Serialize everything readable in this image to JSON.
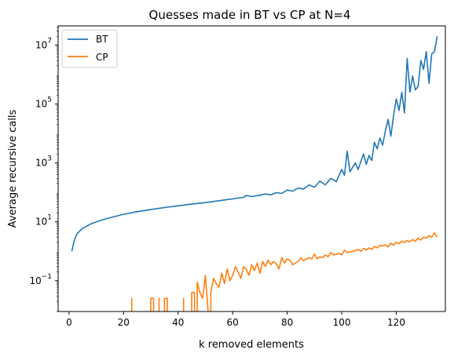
{
  "chart_data": {
    "type": "line",
    "title": "Quesses made in BT vs CP at N=4",
    "xlabel": "k removed elements",
    "ylabel": "Average recursive calls",
    "xlim": [
      -4,
      138
    ],
    "ylim": [
      0.009,
      45000000
    ],
    "yscale": "log",
    "grid": false,
    "legend_position": "top-left",
    "x_ticks": [
      {
        "value": 0,
        "label": "0"
      },
      {
        "value": 20,
        "label": "20"
      },
      {
        "value": 40,
        "label": "40"
      },
      {
        "value": 60,
        "label": "60"
      },
      {
        "value": 80,
        "label": "80"
      },
      {
        "value": 100,
        "label": "100"
      },
      {
        "value": 120,
        "label": "120"
      }
    ],
    "y_ticks": [
      {
        "value": 0.1,
        "base": "10",
        "exp": "−1"
      },
      {
        "value": 10,
        "base": "10",
        "exp": "1"
      },
      {
        "value": 1000,
        "base": "10",
        "exp": "3"
      },
      {
        "value": 100000,
        "base": "10",
        "exp": "5"
      },
      {
        "value": 10000000,
        "base": "10",
        "exp": "7"
      }
    ],
    "series": [
      {
        "name": "BT",
        "color": "#1f77b4",
        "points": [
          [
            1,
            1
          ],
          [
            2,
            2.5
          ],
          [
            3,
            4
          ],
          [
            5,
            6
          ],
          [
            8,
            8.5
          ],
          [
            12,
            11.5
          ],
          [
            16,
            14.5
          ],
          [
            20,
            18
          ],
          [
            25,
            22
          ],
          [
            30,
            26
          ],
          [
            35,
            30.5
          ],
          [
            40,
            35
          ],
          [
            45,
            40
          ],
          [
            50,
            45
          ],
          [
            55,
            52
          ],
          [
            60,
            60
          ],
          [
            64,
            68
          ],
          [
            65,
            78
          ],
          [
            67,
            72
          ],
          [
            70,
            80
          ],
          [
            72,
            88
          ],
          [
            74,
            82
          ],
          [
            76,
            98
          ],
          [
            78,
            92
          ],
          [
            80,
            120
          ],
          [
            82,
            110
          ],
          [
            84,
            140
          ],
          [
            86,
            130
          ],
          [
            88,
            180
          ],
          [
            90,
            150
          ],
          [
            92,
            240
          ],
          [
            94,
            180
          ],
          [
            96,
            300
          ],
          [
            98,
            230
          ],
          [
            100,
            600
          ],
          [
            101,
            380
          ],
          [
            102,
            2500
          ],
          [
            103,
            500
          ],
          [
            105,
            1000
          ],
          [
            106,
            600
          ],
          [
            108,
            2000
          ],
          [
            109,
            900
          ],
          [
            110,
            1800
          ],
          [
            111,
            1200
          ],
          [
            112,
            5000
          ],
          [
            113,
            3000
          ],
          [
            114,
            7000
          ],
          [
            115,
            4000
          ],
          [
            116,
            12000
          ],
          [
            117,
            30000
          ],
          [
            118,
            8000
          ],
          [
            119,
            40000
          ],
          [
            120,
            150000
          ],
          [
            121,
            60000
          ],
          [
            122,
            250000
          ],
          [
            123,
            50000
          ],
          [
            124,
            3500000
          ],
          [
            125,
            250000
          ],
          [
            126,
            900000
          ],
          [
            127,
            300000
          ],
          [
            128,
            400000
          ],
          [
            129,
            3000000
          ],
          [
            130,
            1500000
          ],
          [
            131,
            6000000
          ],
          [
            132,
            500000
          ],
          [
            133,
            5000000
          ],
          [
            134,
            6000000
          ],
          [
            135,
            20000000
          ]
        ]
      },
      {
        "name": "CP",
        "color": "#ff7f0e",
        "segments": [
          [
            [
              23,
              0.009
            ],
            [
              23,
              0.025
            ],
            [
              23,
              0.009
            ]
          ],
          [
            [
              30,
              0.009
            ],
            [
              30,
              0.025
            ],
            [
              31,
              0.025
            ],
            [
              31,
              0.009
            ]
          ],
          [
            [
              33,
              0.009
            ],
            [
              33,
              0.025
            ],
            [
              33,
              0.009
            ]
          ],
          [
            [
              35,
              0.009
            ],
            [
              35,
              0.025
            ],
            [
              36,
              0.025
            ],
            [
              36,
              0.009
            ]
          ],
          [
            [
              42,
              0.009
            ],
            [
              42,
              0.025
            ],
            [
              42,
              0.009
            ]
          ],
          [
            [
              45,
              0.009
            ],
            [
              45,
              0.04
            ],
            [
              46,
              0.04
            ],
            [
              46,
              0.009
            ]
          ],
          [
            [
              47,
              0.009
            ],
            [
              47,
              0.09
            ],
            [
              48,
              0.04
            ],
            [
              49,
              0.025
            ],
            [
              50,
              0.15
            ],
            [
              51,
              0.009
            ]
          ],
          [
            [
              52,
              0.009
            ],
            [
              52,
              0.04
            ],
            [
              53,
              0.12
            ],
            [
              54,
              0.08
            ],
            [
              55,
              0.06
            ],
            [
              56,
              0.18
            ],
            [
              57,
              0.08
            ],
            [
              58,
              0.25
            ],
            [
              59,
              0.1
            ],
            [
              60,
              0.15
            ],
            [
              61,
              0.3
            ],
            [
              62,
              0.2
            ],
            [
              63,
              0.12
            ],
            [
              64,
              0.3
            ],
            [
              65,
              0.25
            ],
            [
              66,
              0.15
            ],
            [
              67,
              0.35
            ],
            [
              68,
              0.22
            ],
            [
              69,
              0.4
            ],
            [
              70,
              0.18
            ],
            [
              71,
              0.45
            ],
            [
              72,
              0.3
            ],
            [
              73,
              0.5
            ],
            [
              74,
              0.35
            ],
            [
              75,
              0.45
            ],
            [
              76,
              0.38
            ],
            [
              77,
              0.25
            ],
            [
              78,
              0.6
            ],
            [
              79,
              0.4
            ],
            [
              80,
              0.55
            ],
            [
              81,
              0.5
            ],
            [
              82,
              0.35
            ],
            [
              83,
              0.4
            ],
            [
              84,
              0.45
            ],
            [
              85,
              0.6
            ],
            [
              86,
              0.48
            ],
            [
              87,
              0.55
            ],
            [
              88,
              0.6
            ],
            [
              89,
              0.55
            ],
            [
              90,
              0.8
            ],
            [
              91,
              0.55
            ],
            [
              92,
              0.65
            ],
            [
              93,
              0.6
            ],
            [
              94,
              0.75
            ],
            [
              95,
              0.65
            ],
            [
              96,
              0.9
            ],
            [
              97,
              0.75
            ],
            [
              98,
              0.8
            ],
            [
              99,
              0.85
            ],
            [
              100,
              0.75
            ],
            [
              101,
              1.1
            ],
            [
              102,
              0.9
            ],
            [
              103,
              0.95
            ],
            [
              104,
              1.0
            ],
            [
              105,
              1.05
            ],
            [
              106,
              1.15
            ],
            [
              107,
              1.0
            ],
            [
              108,
              1.25
            ],
            [
              109,
              1.1
            ],
            [
              110,
              1.3
            ],
            [
              111,
              1.15
            ],
            [
              112,
              1.45
            ],
            [
              113,
              1.3
            ],
            [
              114,
              1.6
            ],
            [
              115,
              1.5
            ],
            [
              116,
              1.65
            ],
            [
              117,
              1.4
            ],
            [
              118,
              1.9
            ],
            [
              119,
              1.6
            ],
            [
              120,
              2.0
            ],
            [
              121,
              1.8
            ],
            [
              122,
              2.2
            ],
            [
              123,
              2.0
            ],
            [
              124,
              2.3
            ],
            [
              125,
              2.1
            ],
            [
              126,
              2.5
            ],
            [
              127,
              2.2
            ],
            [
              128,
              2.8
            ],
            [
              129,
              2.4
            ],
            [
              130,
              3.0
            ],
            [
              131,
              2.8
            ],
            [
              132,
              3.4
            ],
            [
              133,
              3.0
            ],
            [
              134,
              4.2
            ],
            [
              135,
              3.0
            ]
          ]
        ]
      }
    ]
  }
}
